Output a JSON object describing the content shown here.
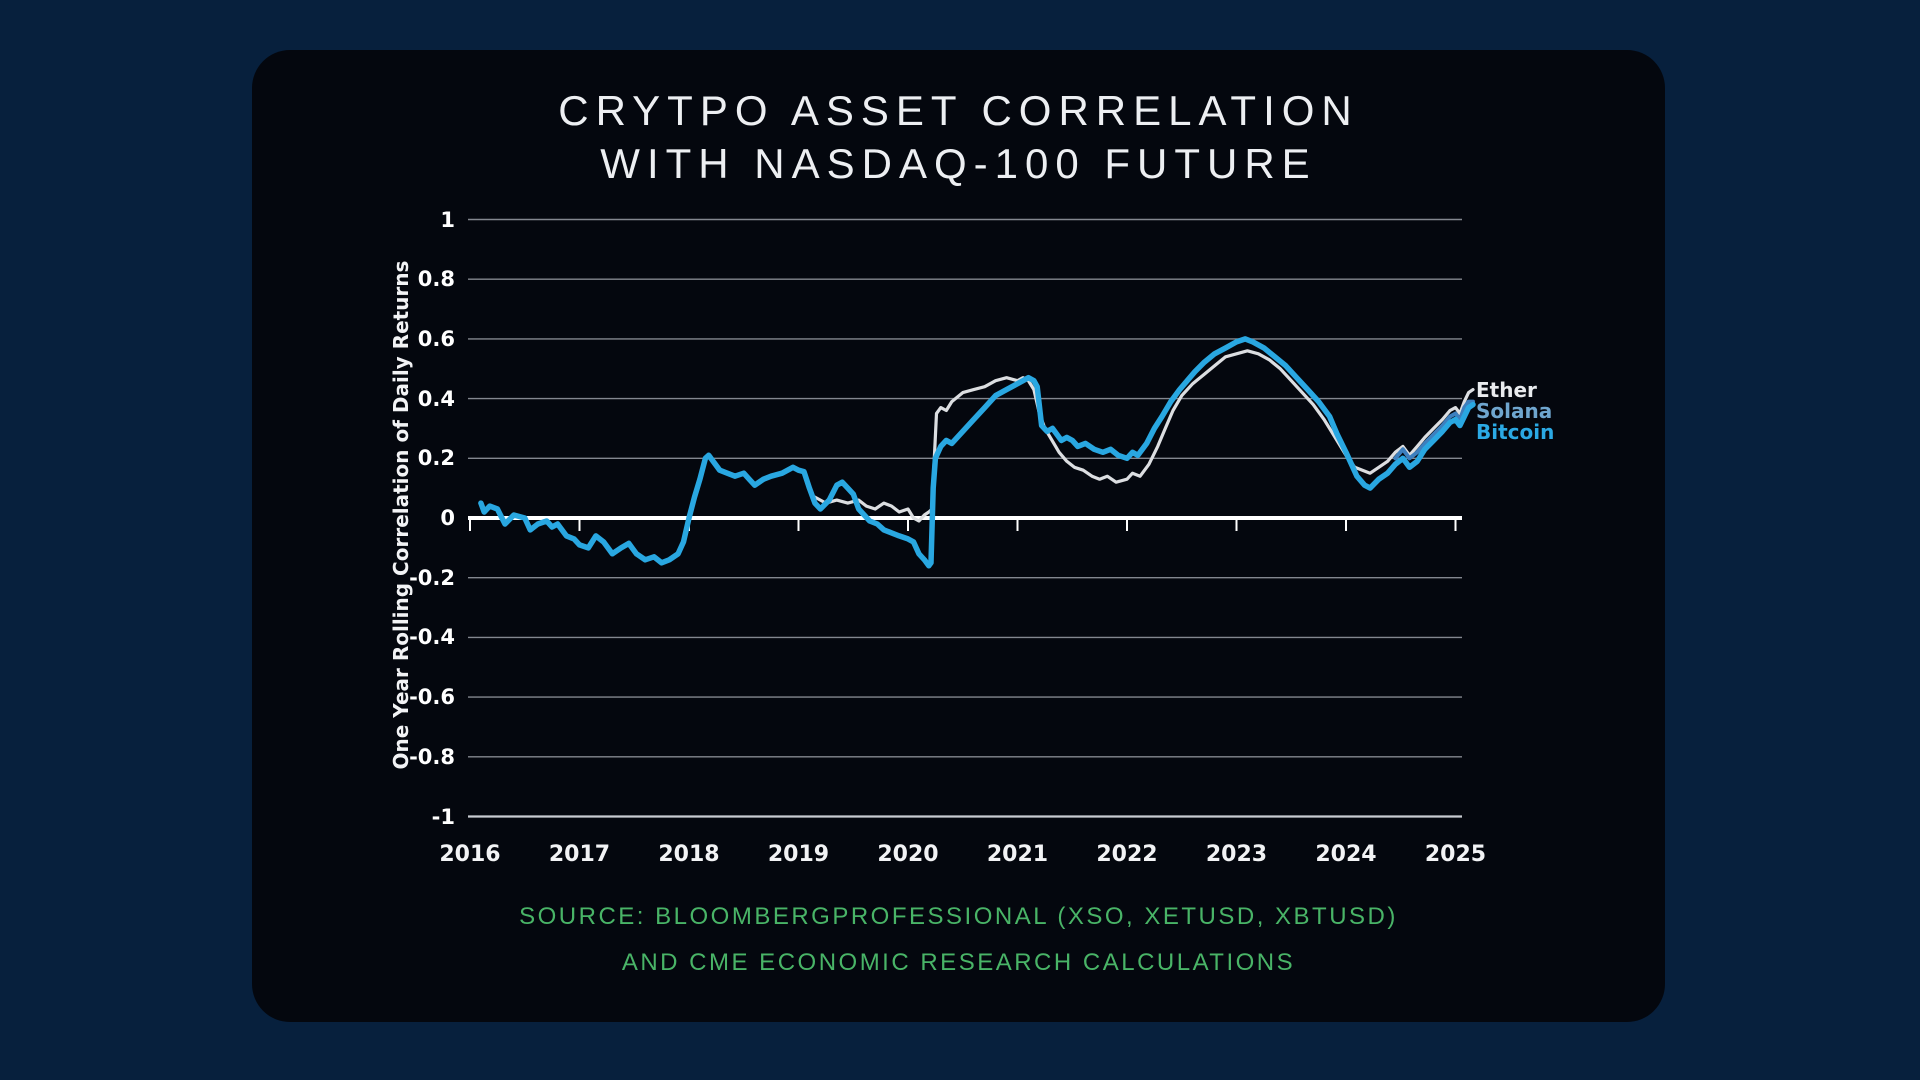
{
  "title": {
    "line1": "CRYTPO ASSET CORRELATION",
    "line2": "WITH NASDAQ-100 FUTURE"
  },
  "source": {
    "line1": "SOURCE: BLOOMBERGPROFESSIONAL (XSO, XETUSD, XBTUSD)",
    "line2": "AND CME ECONOMIC RESEARCH CALCULATIONS",
    "color": "#49B467"
  },
  "colors": {
    "page_background": "#07203D",
    "panel_background": "#04070E",
    "grid_line": "#9A9EA6",
    "zero_axis": "#FFFFFF",
    "bottom_axis": "#C8CBD1",
    "title_text": "#EDEFF2",
    "tick_text": "#FFFFFF"
  },
  "chart_data": {
    "type": "line",
    "title": "CRYTPO ASSET CORRELATION WITH NASDAQ-100 FUTURE",
    "xlabel": "",
    "ylabel": "One Year Rolling Correlation of Daily Returns",
    "ylim": [
      -1,
      1
    ],
    "xlim": [
      2015.95,
      2025.3
    ],
    "grid": true,
    "y_ticks": [
      1,
      0.8,
      0.6,
      0.4,
      0.2,
      0,
      -0.2,
      -0.4,
      -0.6,
      -0.8,
      -1
    ],
    "x_ticks": [
      2016,
      2017,
      2018,
      2019,
      2020,
      2021,
      2022,
      2023,
      2024,
      2025
    ],
    "legend_position": "right of line ends",
    "series": [
      {
        "name": "Ether",
        "color": "#DCDEE1",
        "label_color": "#E9EBEE",
        "width": 3.2,
        "points": [
          [
            2019.15,
            0.07
          ],
          [
            2019.25,
            0.05
          ],
          [
            2019.35,
            0.06
          ],
          [
            2019.45,
            0.05
          ],
          [
            2019.55,
            0.06
          ],
          [
            2019.62,
            0.04
          ],
          [
            2019.7,
            0.03
          ],
          [
            2019.78,
            0.05
          ],
          [
            2019.85,
            0.04
          ],
          [
            2019.92,
            0.02
          ],
          [
            2020.0,
            0.03
          ],
          [
            2020.05,
            0.0
          ],
          [
            2020.1,
            -0.01
          ],
          [
            2020.15,
            0.01
          ],
          [
            2020.19,
            0.02
          ],
          [
            2020.22,
            0.03
          ],
          [
            2020.24,
            0.2
          ],
          [
            2020.26,
            0.35
          ],
          [
            2020.3,
            0.37
          ],
          [
            2020.35,
            0.36
          ],
          [
            2020.4,
            0.39
          ],
          [
            2020.5,
            0.42
          ],
          [
            2020.6,
            0.43
          ],
          [
            2020.7,
            0.44
          ],
          [
            2020.8,
            0.46
          ],
          [
            2020.9,
            0.47
          ],
          [
            2020.95,
            0.465
          ],
          [
            2021.0,
            0.46
          ],
          [
            2021.05,
            0.47
          ],
          [
            2021.1,
            0.46
          ],
          [
            2021.15,
            0.43
          ],
          [
            2021.2,
            0.35
          ],
          [
            2021.25,
            0.3
          ],
          [
            2021.3,
            0.27
          ],
          [
            2021.38,
            0.22
          ],
          [
            2021.45,
            0.19
          ],
          [
            2021.52,
            0.17
          ],
          [
            2021.6,
            0.16
          ],
          [
            2021.68,
            0.14
          ],
          [
            2021.75,
            0.13
          ],
          [
            2021.82,
            0.14
          ],
          [
            2021.9,
            0.12
          ],
          [
            2022.0,
            0.13
          ],
          [
            2022.05,
            0.15
          ],
          [
            2022.12,
            0.14
          ],
          [
            2022.2,
            0.18
          ],
          [
            2022.28,
            0.24
          ],
          [
            2022.35,
            0.3
          ],
          [
            2022.42,
            0.36
          ],
          [
            2022.5,
            0.41
          ],
          [
            2022.6,
            0.45
          ],
          [
            2022.7,
            0.48
          ],
          [
            2022.8,
            0.51
          ],
          [
            2022.9,
            0.54
          ],
          [
            2023.0,
            0.55
          ],
          [
            2023.1,
            0.56
          ],
          [
            2023.2,
            0.55
          ],
          [
            2023.3,
            0.53
          ],
          [
            2023.4,
            0.5
          ],
          [
            2023.5,
            0.46
          ],
          [
            2023.6,
            0.42
          ],
          [
            2023.7,
            0.38
          ],
          [
            2023.8,
            0.33
          ],
          [
            2023.9,
            0.27
          ],
          [
            2024.0,
            0.21
          ],
          [
            2024.08,
            0.17
          ],
          [
            2024.15,
            0.16
          ],
          [
            2024.22,
            0.15
          ],
          [
            2024.3,
            0.17
          ],
          [
            2024.38,
            0.19
          ],
          [
            2024.45,
            0.22
          ],
          [
            2024.52,
            0.24
          ],
          [
            2024.58,
            0.21
          ],
          [
            2024.65,
            0.24
          ],
          [
            2024.72,
            0.27
          ],
          [
            2024.8,
            0.3
          ],
          [
            2024.88,
            0.33
          ],
          [
            2024.95,
            0.36
          ],
          [
            2025.0,
            0.37
          ],
          [
            2025.04,
            0.35
          ],
          [
            2025.08,
            0.39
          ],
          [
            2025.12,
            0.42
          ],
          [
            2025.16,
            0.43
          ]
        ]
      },
      {
        "name": "Solana",
        "color": "#3D7FBE",
        "label_color": "#6FA6CF",
        "width": 4,
        "points": [
          [
            2024.45,
            0.2
          ],
          [
            2024.52,
            0.23
          ],
          [
            2024.58,
            0.2
          ],
          [
            2024.65,
            0.22
          ],
          [
            2024.72,
            0.25
          ],
          [
            2024.8,
            0.28
          ],
          [
            2024.88,
            0.31
          ],
          [
            2024.95,
            0.34
          ],
          [
            2025.0,
            0.35
          ],
          [
            2025.04,
            0.33
          ],
          [
            2025.08,
            0.37
          ],
          [
            2025.12,
            0.39
          ],
          [
            2025.16,
            0.39
          ]
        ]
      },
      {
        "name": "Bitcoin",
        "color": "#29A7E1",
        "label_color": "#2BA9E4",
        "width": 5.5,
        "points": [
          [
            2016.1,
            0.05
          ],
          [
            2016.13,
            0.02
          ],
          [
            2016.18,
            0.04
          ],
          [
            2016.25,
            0.03
          ],
          [
            2016.32,
            -0.02
          ],
          [
            2016.4,
            0.01
          ],
          [
            2016.5,
            0.0
          ],
          [
            2016.55,
            -0.04
          ],
          [
            2016.62,
            -0.02
          ],
          [
            2016.7,
            -0.01
          ],
          [
            2016.75,
            -0.03
          ],
          [
            2016.8,
            -0.02
          ],
          [
            2016.88,
            -0.06
          ],
          [
            2016.95,
            -0.07
          ],
          [
            2017.0,
            -0.09
          ],
          [
            2017.08,
            -0.1
          ],
          [
            2017.15,
            -0.06
          ],
          [
            2017.22,
            -0.08
          ],
          [
            2017.3,
            -0.12
          ],
          [
            2017.38,
            -0.1
          ],
          [
            2017.45,
            -0.085
          ],
          [
            2017.52,
            -0.12
          ],
          [
            2017.6,
            -0.14
          ],
          [
            2017.68,
            -0.13
          ],
          [
            2017.75,
            -0.15
          ],
          [
            2017.82,
            -0.14
          ],
          [
            2017.9,
            -0.12
          ],
          [
            2017.95,
            -0.08
          ],
          [
            2018.0,
            0.0
          ],
          [
            2018.05,
            0.07
          ],
          [
            2018.1,
            0.13
          ],
          [
            2018.15,
            0.2
          ],
          [
            2018.18,
            0.21
          ],
          [
            2018.22,
            0.19
          ],
          [
            2018.28,
            0.16
          ],
          [
            2018.35,
            0.15
          ],
          [
            2018.42,
            0.14
          ],
          [
            2018.5,
            0.15
          ],
          [
            2018.55,
            0.13
          ],
          [
            2018.6,
            0.11
          ],
          [
            2018.68,
            0.13
          ],
          [
            2018.75,
            0.14
          ],
          [
            2018.85,
            0.15
          ],
          [
            2018.95,
            0.17
          ],
          [
            2019.0,
            0.16
          ],
          [
            2019.05,
            0.155
          ],
          [
            2019.1,
            0.1
          ],
          [
            2019.15,
            0.05
          ],
          [
            2019.2,
            0.03
          ],
          [
            2019.28,
            0.06
          ],
          [
            2019.35,
            0.11
          ],
          [
            2019.4,
            0.12
          ],
          [
            2019.45,
            0.1
          ],
          [
            2019.5,
            0.08
          ],
          [
            2019.55,
            0.03
          ],
          [
            2019.6,
            0.01
          ],
          [
            2019.65,
            -0.01
          ],
          [
            2019.72,
            -0.02
          ],
          [
            2019.78,
            -0.04
          ],
          [
            2019.85,
            -0.05
          ],
          [
            2019.92,
            -0.06
          ],
          [
            2020.0,
            -0.07
          ],
          [
            2020.05,
            -0.08
          ],
          [
            2020.1,
            -0.12
          ],
          [
            2020.15,
            -0.14
          ],
          [
            2020.19,
            -0.16
          ],
          [
            2020.21,
            -0.15
          ],
          [
            2020.23,
            0.1
          ],
          [
            2020.25,
            0.2
          ],
          [
            2020.3,
            0.24
          ],
          [
            2020.35,
            0.26
          ],
          [
            2020.4,
            0.25
          ],
          [
            2020.45,
            0.27
          ],
          [
            2020.5,
            0.29
          ],
          [
            2020.6,
            0.33
          ],
          [
            2020.7,
            0.37
          ],
          [
            2020.8,
            0.41
          ],
          [
            2020.9,
            0.43
          ],
          [
            2021.0,
            0.45
          ],
          [
            2021.05,
            0.46
          ],
          [
            2021.1,
            0.47
          ],
          [
            2021.15,
            0.46
          ],
          [
            2021.18,
            0.44
          ],
          [
            2021.22,
            0.31
          ],
          [
            2021.27,
            0.29
          ],
          [
            2021.32,
            0.3
          ],
          [
            2021.4,
            0.26
          ],
          [
            2021.45,
            0.27
          ],
          [
            2021.5,
            0.26
          ],
          [
            2021.55,
            0.24
          ],
          [
            2021.62,
            0.25
          ],
          [
            2021.7,
            0.23
          ],
          [
            2021.78,
            0.22
          ],
          [
            2021.85,
            0.23
          ],
          [
            2021.92,
            0.21
          ],
          [
            2022.0,
            0.2
          ],
          [
            2022.05,
            0.22
          ],
          [
            2022.1,
            0.21
          ],
          [
            2022.18,
            0.25
          ],
          [
            2022.25,
            0.3
          ],
          [
            2022.32,
            0.34
          ],
          [
            2022.4,
            0.39
          ],
          [
            2022.48,
            0.43
          ],
          [
            2022.55,
            0.46
          ],
          [
            2022.62,
            0.49
          ],
          [
            2022.7,
            0.52
          ],
          [
            2022.8,
            0.55
          ],
          [
            2022.9,
            0.57
          ],
          [
            2023.0,
            0.59
          ],
          [
            2023.08,
            0.6
          ],
          [
            2023.15,
            0.59
          ],
          [
            2023.25,
            0.57
          ],
          [
            2023.35,
            0.54
          ],
          [
            2023.45,
            0.51
          ],
          [
            2023.55,
            0.47
          ],
          [
            2023.65,
            0.43
          ],
          [
            2023.75,
            0.39
          ],
          [
            2023.85,
            0.34
          ],
          [
            2023.92,
            0.28
          ],
          [
            2024.0,
            0.22
          ],
          [
            2024.05,
            0.18
          ],
          [
            2024.1,
            0.14
          ],
          [
            2024.17,
            0.11
          ],
          [
            2024.22,
            0.1
          ],
          [
            2024.3,
            0.13
          ],
          [
            2024.38,
            0.15
          ],
          [
            2024.45,
            0.18
          ],
          [
            2024.52,
            0.2
          ],
          [
            2024.58,
            0.17
          ],
          [
            2024.65,
            0.19
          ],
          [
            2024.72,
            0.23
          ],
          [
            2024.8,
            0.26
          ],
          [
            2024.88,
            0.29
          ],
          [
            2024.95,
            0.32
          ],
          [
            2025.0,
            0.33
          ],
          [
            2025.04,
            0.31
          ],
          [
            2025.08,
            0.34
          ],
          [
            2025.12,
            0.37
          ],
          [
            2025.16,
            0.38
          ]
        ]
      }
    ]
  }
}
